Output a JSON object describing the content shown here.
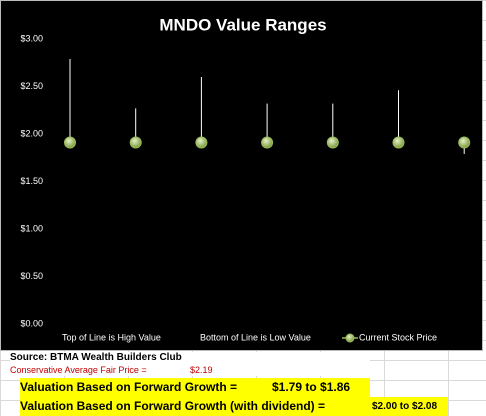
{
  "chart_data": {
    "type": "hilo",
    "title": "MNDO Value Ranges",
    "categories": [
      null,
      null,
      null,
      null,
      null,
      null,
      null
    ],
    "series": [
      {
        "name": "Top of Line is High Value",
        "color": "#ffffff",
        "values": [
          2.79,
          2.27,
          2.6,
          2.32,
          2.32,
          2.46,
          1.93
        ]
      },
      {
        "name": "Bottom of Line is Low Value",
        "color": "#ffffff",
        "values": [
          1.9,
          1.9,
          1.9,
          1.9,
          1.9,
          1.9,
          1.79
        ]
      },
      {
        "name": "Current Stock Price",
        "color": "#9bbb59",
        "values": [
          1.91,
          1.91,
          1.91,
          1.91,
          1.91,
          1.91,
          1.91
        ]
      }
    ],
    "ylim": [
      0,
      3
    ],
    "yticks": [
      {
        "value": 0,
        "label": "$0.00"
      },
      {
        "value": 0.5,
        "label": "$0.50"
      },
      {
        "value": 1,
        "label": "$1.00"
      },
      {
        "value": 1.5,
        "label": "$1.50"
      },
      {
        "value": 2,
        "label": "$2.00"
      },
      {
        "value": 2.5,
        "label": "$2.50"
      },
      {
        "value": 3,
        "label": "$3.00"
      }
    ],
    "grid": false
  },
  "sheet": {
    "source": "Source: BTMA Wealth Builders Club",
    "fair_price_label": "Conservative Average Fair Price =",
    "fair_price": "$2.19",
    "rows": [
      [
        "Valuation Based on Forward Growth =",
        "$1.79 to $1.86"
      ],
      [
        "Valuation Based on Forward Growth (with dividend) =",
        "$2.00 to $2.08"
      ]
    ]
  }
}
